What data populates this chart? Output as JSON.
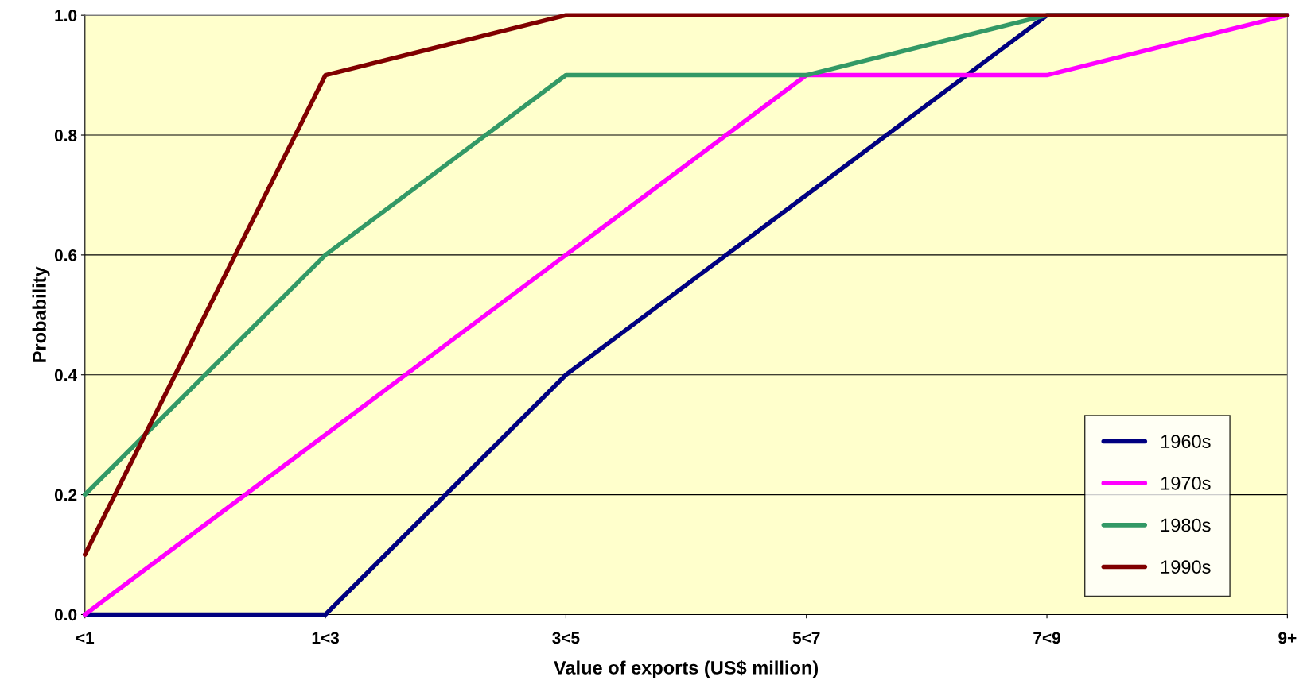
{
  "chart_data": {
    "type": "line",
    "xlabel": "Value of exports (US$ million)",
    "ylabel": "Probability",
    "categories": [
      "<1",
      "1<3",
      "3<5",
      "5<7",
      "7<9",
      "9+"
    ],
    "series": [
      {
        "name": "1960s",
        "color": "#000080",
        "values": [
          0,
          0,
          0.4,
          0.7,
          1.0,
          1.0
        ]
      },
      {
        "name": "1970s",
        "color": "#ff00ff",
        "values": [
          0,
          0.3,
          0.6,
          0.9,
          0.9,
          1.0
        ]
      },
      {
        "name": "1980s",
        "color": "#339966",
        "values": [
          0.2,
          0.6,
          0.9,
          0.9,
          1.0,
          1.0
        ]
      },
      {
        "name": "1990s",
        "color": "#800000",
        "values": [
          0.1,
          0.9,
          1.0,
          1.0,
          1.0,
          1.0
        ]
      }
    ],
    "ylim": [
      0,
      1.0
    ],
    "yticks": [
      {
        "value": 0,
        "label": "0.0"
      },
      {
        "value": 0.2,
        "label": "0.2"
      },
      {
        "value": 0.4,
        "label": "0.4"
      },
      {
        "value": 0.6,
        "label": "0.6"
      },
      {
        "value": 0.8,
        "label": "0.8"
      },
      {
        "value": 1.0,
        "label": "1.0"
      }
    ],
    "grid": "y",
    "legend": "bottom right",
    "marker": "none",
    "line_style": "solid"
  }
}
